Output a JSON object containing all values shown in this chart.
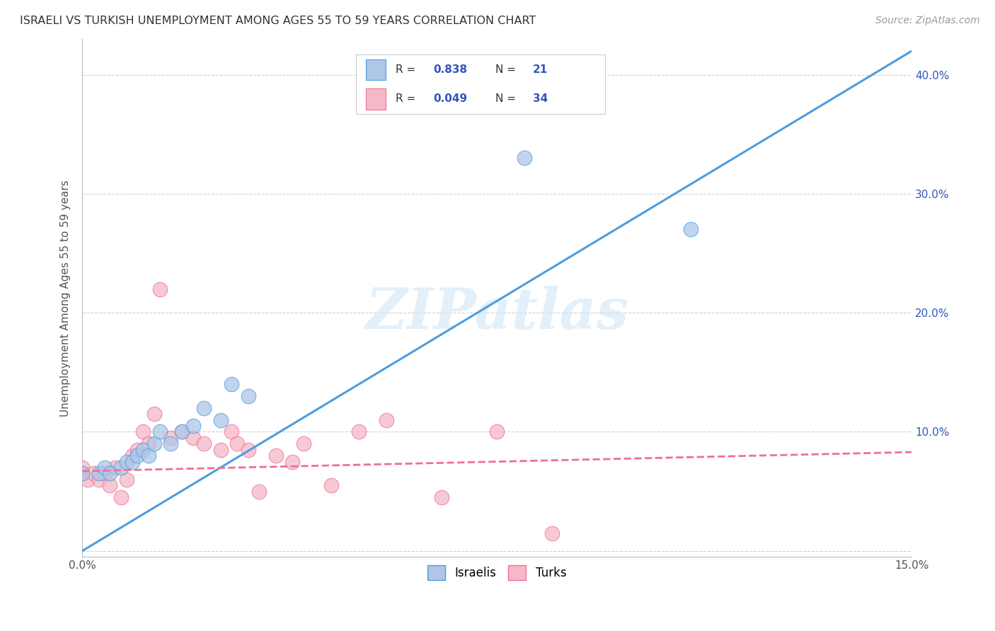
{
  "title": "ISRAELI VS TURKISH UNEMPLOYMENT AMONG AGES 55 TO 59 YEARS CORRELATION CHART",
  "source": "Source: ZipAtlas.com",
  "ylabel": "Unemployment Among Ages 55 to 59 years",
  "watermark": "ZIPatlas",
  "xlim": [
    0.0,
    0.15
  ],
  "ylim": [
    -0.005,
    0.43
  ],
  "israeli_R": 0.838,
  "israeli_N": 21,
  "turkish_R": 0.049,
  "turkish_N": 34,
  "israeli_color": "#aec6e8",
  "turkish_color": "#f5b8c8",
  "israeli_line_color": "#4d9de0",
  "turkish_line_color": "#f07090",
  "stat_text_color": "#3355bb",
  "label_color": "#3355bb",
  "grid_color": "#cccccc",
  "israeli_line_x0": 0.0,
  "israeli_line_y0": 0.0,
  "israeli_line_x1": 0.15,
  "israeli_line_y1": 0.42,
  "turkish_line_x0": 0.0,
  "turkish_line_y0": 0.067,
  "turkish_line_x1": 0.15,
  "turkish_line_y1": 0.083,
  "israeli_x": [
    0.0,
    0.003,
    0.004,
    0.005,
    0.007,
    0.008,
    0.009,
    0.01,
    0.011,
    0.012,
    0.013,
    0.014,
    0.016,
    0.018,
    0.02,
    0.022,
    0.025,
    0.027,
    0.03,
    0.08,
    0.11
  ],
  "israeli_y": [
    0.065,
    0.065,
    0.07,
    0.065,
    0.07,
    0.075,
    0.075,
    0.08,
    0.085,
    0.08,
    0.09,
    0.1,
    0.09,
    0.1,
    0.105,
    0.12,
    0.11,
    0.14,
    0.13,
    0.33,
    0.27
  ],
  "turkish_x": [
    0.0,
    0.0,
    0.001,
    0.002,
    0.003,
    0.004,
    0.005,
    0.006,
    0.007,
    0.008,
    0.009,
    0.01,
    0.011,
    0.012,
    0.013,
    0.014,
    0.016,
    0.018,
    0.02,
    0.022,
    0.025,
    0.027,
    0.028,
    0.03,
    0.032,
    0.035,
    0.038,
    0.04,
    0.045,
    0.05,
    0.055,
    0.065,
    0.075,
    0.085
  ],
  "turkish_y": [
    0.065,
    0.07,
    0.06,
    0.065,
    0.06,
    0.065,
    0.055,
    0.07,
    0.045,
    0.06,
    0.08,
    0.085,
    0.1,
    0.09,
    0.115,
    0.22,
    0.095,
    0.1,
    0.095,
    0.09,
    0.085,
    0.1,
    0.09,
    0.085,
    0.05,
    0.08,
    0.075,
    0.09,
    0.055,
    0.1,
    0.11,
    0.045,
    0.1,
    0.015
  ]
}
